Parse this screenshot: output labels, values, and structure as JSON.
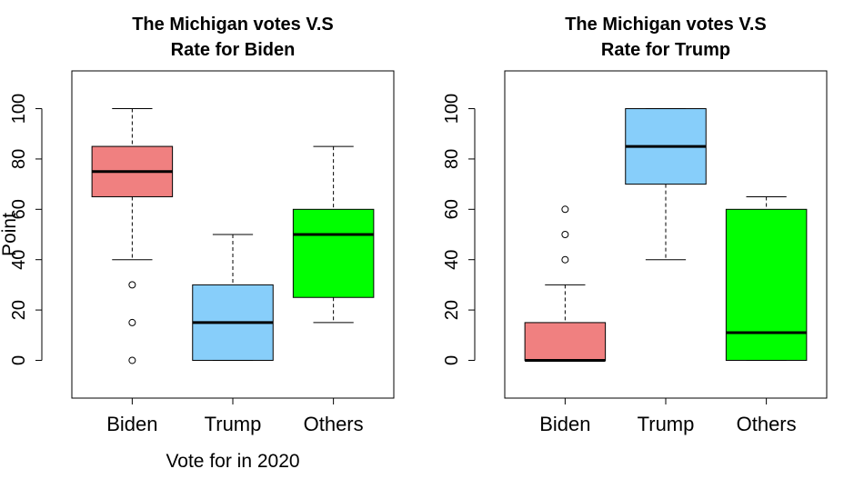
{
  "chart_data": [
    {
      "type": "boxplot",
      "title": [
        "The Michigan votes V.S",
        "Rate for Biden"
      ],
      "xlabel": "Vote for in 2020",
      "ylabel": "Point",
      "ylim": [
        -15,
        115
      ],
      "yticks": [
        "0",
        "20",
        "40",
        "60",
        "80",
        "100"
      ],
      "categories": [
        "Biden",
        "Trump",
        "Others"
      ],
      "boxes": [
        {
          "color": "#F08080",
          "min": 40,
          "q1": 65,
          "median": 75,
          "q3": 85,
          "max": 100,
          "outliers": [
            30,
            15,
            0
          ]
        },
        {
          "color": "#87CEFA",
          "min": 0,
          "q1": 0,
          "median": 15,
          "q3": 30,
          "max": 50,
          "outliers": []
        },
        {
          "color": "#00FF00",
          "min": 15,
          "q1": 25,
          "median": 50,
          "q3": 60,
          "max": 85,
          "outliers": []
        }
      ]
    },
    {
      "type": "boxplot",
      "title": [
        "The Michigan votes V.S",
        "Rate for Trump"
      ],
      "xlabel": "",
      "ylabel": "",
      "ylim": [
        -15,
        115
      ],
      "yticks": [
        "0",
        "20",
        "40",
        "60",
        "80",
        "100"
      ],
      "categories": [
        "Biden",
        "Trump",
        "Others"
      ],
      "boxes": [
        {
          "color": "#F08080",
          "min": 0,
          "q1": 0,
          "median": 0,
          "q3": 15,
          "max": 30,
          "outliers": [
            60,
            50,
            40
          ]
        },
        {
          "color": "#87CEFA",
          "min": 40,
          "q1": 70,
          "median": 85,
          "q3": 100,
          "max": 100,
          "outliers": []
        },
        {
          "color": "#00FF00",
          "min": 0,
          "q1": 0,
          "median": 11,
          "q3": 60,
          "max": 65,
          "outliers": []
        }
      ]
    }
  ]
}
